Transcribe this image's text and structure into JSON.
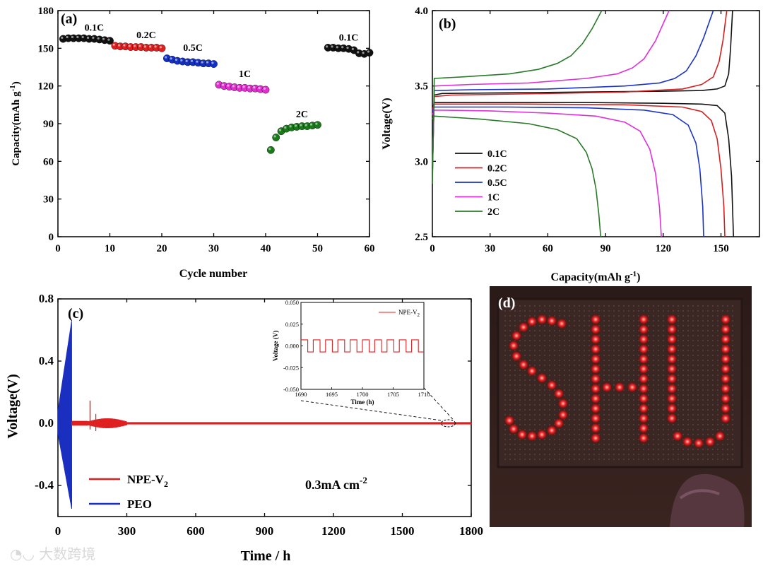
{
  "chart_data": [
    {
      "panel": "(a)",
      "type": "scatter",
      "xlabel": "Cycle number",
      "ylabel": "Capacity(mAh g",
      "ylabel_sup": "-1",
      "ylabel_close": ")",
      "xlim": [
        0,
        60
      ],
      "ylim": [
        0,
        180
      ],
      "xticks": [
        0,
        10,
        20,
        30,
        40,
        50,
        60
      ],
      "yticks": [
        0,
        30,
        60,
        90,
        120,
        150,
        180
      ],
      "series": [
        {
          "name": "0.1C",
          "color": "#111111",
          "x": [
            1,
            2,
            3,
            4,
            5,
            6,
            7,
            8,
            9,
            10
          ],
          "values": [
            157.5,
            158,
            158,
            158,
            158,
            157.5,
            157.5,
            157,
            156.5,
            156
          ]
        },
        {
          "name": "0.2C",
          "color": "#e02020",
          "x": [
            11,
            12,
            13,
            14,
            15,
            16,
            17,
            18,
            19,
            20
          ],
          "values": [
            152,
            151.5,
            151.5,
            151,
            151,
            151,
            150.5,
            150.5,
            150.5,
            150
          ]
        },
        {
          "name": "0.5C",
          "color": "#1530c0",
          "x": [
            21,
            22,
            23,
            24,
            25,
            26,
            27,
            28,
            29,
            30
          ],
          "values": [
            142,
            141,
            140,
            139.5,
            139,
            139,
            138.5,
            138,
            138,
            137.5
          ]
        },
        {
          "name": "1C",
          "color": "#e030d0",
          "x": [
            31,
            32,
            33,
            34,
            35,
            36,
            37,
            38,
            39,
            40
          ],
          "values": [
            121,
            120,
            119.5,
            119,
            118.5,
            118.5,
            118,
            118,
            117.5,
            117
          ]
        },
        {
          "name": "2C",
          "color": "#1a7a1a",
          "x": [
            41,
            42,
            43,
            44,
            45,
            46,
            47,
            48,
            49,
            50
          ],
          "values": [
            69,
            79,
            84,
            86,
            87,
            87.5,
            88,
            88,
            88.5,
            89
          ]
        },
        {
          "name": "0.1C",
          "color": "#111111",
          "x": [
            52,
            53,
            54,
            55,
            56,
            57,
            58,
            59,
            60
          ],
          "values": [
            150.5,
            150.5,
            150,
            150,
            149.5,
            148.5,
            146,
            145.5,
            146.5
          ]
        }
      ],
      "labels": [
        {
          "text": "0.1C",
          "x": 7,
          "y": 164
        },
        {
          "text": "0.2C",
          "x": 17,
          "y": 158
        },
        {
          "text": "0.5C",
          "x": 26,
          "y": 148
        },
        {
          "text": "1C",
          "x": 36,
          "y": 127
        },
        {
          "text": "2C",
          "x": 47,
          "y": 95
        },
        {
          "text": "0.1C",
          "x": 56,
          "y": 156
        }
      ]
    },
    {
      "panel": "(b)",
      "type": "line",
      "xlabel": "Capacity(mAh g",
      "xlabel_sup": "-1",
      "xlabel_close": ")",
      "ylabel": "Voltage(V)",
      "xlim": [
        0,
        170
      ],
      "ylim": [
        2.5,
        4.0
      ],
      "xticks": [
        0,
        30,
        60,
        90,
        120,
        150
      ],
      "yticks": [
        2.5,
        3.0,
        3.5,
        4.0
      ],
      "legend": "bottom-left",
      "series": [
        {
          "name": "0.1C",
          "color": "#111111",
          "charge": [
            [
              0,
              2.95
            ],
            [
              1,
              3.44
            ],
            [
              5,
              3.45
            ],
            [
              40,
              3.455
            ],
            [
              80,
              3.46
            ],
            [
              120,
              3.465
            ],
            [
              140,
              3.47
            ],
            [
              148,
              3.48
            ],
            [
              152,
              3.5
            ],
            [
              154,
              3.58
            ],
            [
              155,
              3.75
            ],
            [
              156,
              4.0
            ]
          ],
          "discharge": [
            [
              0,
              3.35
            ],
            [
              1,
              3.39
            ],
            [
              40,
              3.39
            ],
            [
              80,
              3.39
            ],
            [
              120,
              3.385
            ],
            [
              140,
              3.38
            ],
            [
              148,
              3.37
            ],
            [
              152,
              3.32
            ],
            [
              154,
              3.15
            ],
            [
              155.5,
              2.9
            ],
            [
              156.5,
              2.5
            ]
          ]
        },
        {
          "name": "0.2C",
          "color": "#d42020",
          "charge": [
            [
              0,
              2.92
            ],
            [
              1,
              3.43
            ],
            [
              10,
              3.44
            ],
            [
              60,
              3.45
            ],
            [
              100,
              3.46
            ],
            [
              130,
              3.48
            ],
            [
              140,
              3.51
            ],
            [
              146,
              3.56
            ],
            [
              149,
              3.66
            ],
            [
              151,
              3.8
            ],
            [
              153,
              4.0
            ]
          ],
          "discharge": [
            [
              0,
              3.34
            ],
            [
              1,
              3.38
            ],
            [
              50,
              3.38
            ],
            [
              100,
              3.375
            ],
            [
              130,
              3.36
            ],
            [
              140,
              3.33
            ],
            [
              145,
              3.27
            ],
            [
              148,
              3.15
            ],
            [
              150,
              2.95
            ],
            [
              151.5,
              2.7
            ],
            [
              152,
              2.5
            ]
          ]
        },
        {
          "name": "0.5C",
          "color": "#1a33c8",
          "charge": [
            [
              0,
              2.9
            ],
            [
              1,
              3.47
            ],
            [
              20,
              3.475
            ],
            [
              60,
              3.48
            ],
            [
              100,
              3.5
            ],
            [
              118,
              3.52
            ],
            [
              126,
              3.55
            ],
            [
              132,
              3.6
            ],
            [
              137,
              3.7
            ],
            [
              141,
              3.82
            ],
            [
              146,
              4.0
            ]
          ],
          "discharge": [
            [
              0,
              3.33
            ],
            [
              1,
              3.36
            ],
            [
              40,
              3.36
            ],
            [
              80,
              3.355
            ],
            [
              110,
              3.34
            ],
            [
              125,
              3.31
            ],
            [
              133,
              3.24
            ],
            [
              137,
              3.12
            ],
            [
              139,
              2.95
            ],
            [
              140.5,
              2.7
            ],
            [
              141,
              2.5
            ]
          ]
        },
        {
          "name": "1C",
          "color": "#e030d8",
          "charge": [
            [
              0,
              2.88
            ],
            [
              1,
              3.5
            ],
            [
              20,
              3.51
            ],
            [
              50,
              3.52
            ],
            [
              80,
              3.55
            ],
            [
              96,
              3.58
            ],
            [
              104,
              3.62
            ],
            [
              110,
              3.68
            ],
            [
              116,
              3.8
            ],
            [
              123,
              4.0
            ]
          ],
          "discharge": [
            [
              0,
              3.31
            ],
            [
              1,
              3.34
            ],
            [
              30,
              3.335
            ],
            [
              60,
              3.32
            ],
            [
              85,
              3.3
            ],
            [
              100,
              3.26
            ],
            [
              108,
              3.2
            ],
            [
              113,
              3.08
            ],
            [
              116,
              2.92
            ],
            [
              118,
              2.7
            ],
            [
              119,
              2.5
            ]
          ]
        },
        {
          "name": "2C",
          "color": "#2a7a2a",
          "charge": [
            [
              0,
              2.85
            ],
            [
              1,
              3.55
            ],
            [
              15,
              3.56
            ],
            [
              40,
              3.58
            ],
            [
              55,
              3.61
            ],
            [
              65,
              3.65
            ],
            [
              72,
              3.7
            ],
            [
              78,
              3.78
            ],
            [
              83,
              3.88
            ],
            [
              88,
              4.0
            ]
          ],
          "discharge": [
            [
              0,
              3.28
            ],
            [
              1,
              3.3
            ],
            [
              25,
              3.28
            ],
            [
              50,
              3.25
            ],
            [
              65,
              3.21
            ],
            [
              75,
              3.15
            ],
            [
              80,
              3.06
            ],
            [
              83,
              2.95
            ],
            [
              85,
              2.82
            ],
            [
              86.5,
              2.65
            ],
            [
              87.5,
              2.5
            ]
          ]
        }
      ]
    },
    {
      "panel": "(c)",
      "type": "line",
      "xlabel": "Time / h",
      "ylabel": "Voltage(V)",
      "xlim": [
        0,
        1800
      ],
      "ylim": [
        -0.6,
        0.8
      ],
      "xticks": [
        0,
        300,
        600,
        900,
        1200,
        1500,
        1800
      ],
      "yticks": [
        -0.4,
        0.0,
        0.4,
        0.8
      ],
      "legend": "bottom-left",
      "annotation": "0.3mA cm",
      "annotation_sup": "-2",
      "series": [
        {
          "name": "NPE-V",
          "name_sub": "2",
          "color": "#e02020",
          "description_points": {
            "spike_x": 140,
            "spike_y": 0.145
          }
        },
        {
          "name": "PEO",
          "color": "#1a2ec0",
          "x_range": [
            0,
            60
          ],
          "max": 0.66,
          "min": -0.55
        }
      ],
      "inset": {
        "xlabel": "Time (h)",
        "ylabel": "Voltage (V)",
        "xlim": [
          1690,
          1710
        ],
        "ylim": [
          -0.05,
          0.05
        ],
        "xticks": [
          1690,
          1695,
          1700,
          1705,
          1710
        ],
        "yticks": [
          -0.05,
          -0.025,
          0.0,
          0.025,
          0.05
        ],
        "ytick_labels": [
          "-0.050",
          "-0.025",
          "0.000",
          "0.025",
          "0.050"
        ],
        "legend": "NPE-V",
        "legend_sub": "2",
        "amplitude": 0.007,
        "period_h": 2
      }
    }
  ],
  "panel_d": {
    "label": "(d)",
    "description_text": "SHU"
  },
  "watermark": "大数跨境"
}
